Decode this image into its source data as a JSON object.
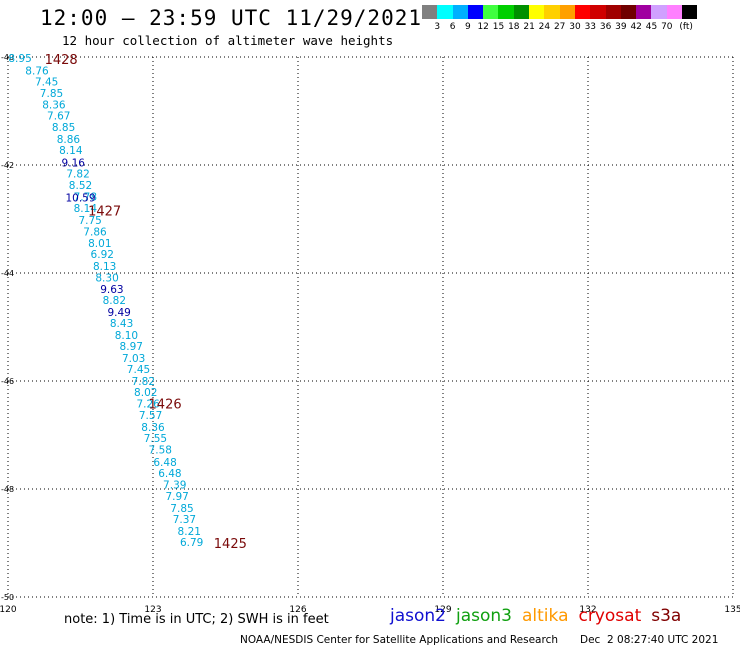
{
  "header": {
    "title": "12:00 — 23:59 UTC 11/29/2021",
    "subtitle": "12 hour collection of altimeter wave heights"
  },
  "legend": {
    "colors": [
      "#808080",
      "#00ffff",
      "#00b0ff",
      "#0000ff",
      "#40ff40",
      "#00d000",
      "#009000",
      "#ffff00",
      "#ffd000",
      "#ffa000",
      "#ff0000",
      "#d00000",
      "#a00000",
      "#700000",
      "#a000a0",
      "#d0a0ff",
      "#ff80ff",
      "#000000"
    ],
    "labels": [
      "3",
      "6",
      "9",
      "12",
      "15",
      "18",
      "21",
      "24",
      "27",
      "30",
      "33",
      "36",
      "39",
      "42",
      "45",
      "70",
      "(ft)"
    ]
  },
  "map": {
    "lat_labels": [
      "-40",
      "-42",
      "-44",
      "-46",
      "-48",
      "-50"
    ],
    "lon_labels": [
      "120",
      "123",
      "126",
      "129",
      "132",
      "135"
    ],
    "lat_values": [
      -40,
      -42,
      -44,
      -46,
      -48,
      -50
    ],
    "lon_values": [
      120,
      123,
      126,
      129,
      132,
      135
    ],
    "bounds": {
      "lon_min": 120,
      "lon_max": 135,
      "lat_max": -40,
      "lat_min": -50
    }
  },
  "colors": {
    "cyan": "#00a8d8",
    "blue": "#0000a0",
    "pass": "#7a0a0a"
  },
  "observations": [
    {
      "label": "8.95",
      "lon": 120.25,
      "lat": -40.02,
      "color": "cyan"
    },
    {
      "label": "8.76",
      "lon": 120.6,
      "lat": -40.25,
      "color": "cyan"
    },
    {
      "label": "7.45",
      "lon": 120.8,
      "lat": -40.45,
      "color": "cyan"
    },
    {
      "label": "7.85",
      "lon": 120.9,
      "lat": -40.67,
      "color": "cyan"
    },
    {
      "label": "8.36",
      "lon": 120.95,
      "lat": -40.88,
      "color": "cyan"
    },
    {
      "label": "7.67",
      "lon": 121.05,
      "lat": -41.08,
      "color": "cyan"
    },
    {
      "label": "8.85",
      "lon": 121.15,
      "lat": -41.3,
      "color": "cyan"
    },
    {
      "label": "8.86",
      "lon": 121.25,
      "lat": -41.52,
      "color": "cyan"
    },
    {
      "label": "8.14",
      "lon": 121.3,
      "lat": -41.72,
      "color": "cyan"
    },
    {
      "label": "9.16",
      "lon": 121.35,
      "lat": -41.95,
      "color": "blue"
    },
    {
      "label": "7.82",
      "lon": 121.45,
      "lat": -42.16,
      "color": "cyan"
    },
    {
      "label": "8.52",
      "lon": 121.5,
      "lat": -42.37,
      "color": "cyan"
    },
    {
      "label": "7.78",
      "lon": 121.6,
      "lat": -42.58,
      "color": "cyan"
    },
    {
      "label": "10.59",
      "lon": 121.5,
      "lat": -42.6,
      "color": "blue"
    },
    {
      "label": "8.14",
      "lon": 121.6,
      "lat": -42.8,
      "color": "cyan"
    },
    {
      "label": "7.75",
      "lon": 121.7,
      "lat": -43.02,
      "color": "cyan"
    },
    {
      "label": "7.86",
      "lon": 121.8,
      "lat": -43.23,
      "color": "cyan"
    },
    {
      "label": "8.01",
      "lon": 121.9,
      "lat": -43.44,
      "color": "cyan"
    },
    {
      "label": "6.92",
      "lon": 121.95,
      "lat": -43.65,
      "color": "cyan"
    },
    {
      "label": "8.13",
      "lon": 122.0,
      "lat": -43.87,
      "color": "cyan"
    },
    {
      "label": "8.30",
      "lon": 122.05,
      "lat": -44.08,
      "color": "cyan"
    },
    {
      "label": "9.63",
      "lon": 122.15,
      "lat": -44.3,
      "color": "blue"
    },
    {
      "label": "8.82",
      "lon": 122.2,
      "lat": -44.5,
      "color": "cyan"
    },
    {
      "label": "9.49",
      "lon": 122.3,
      "lat": -44.72,
      "color": "blue"
    },
    {
      "label": "8.43",
      "lon": 122.35,
      "lat": -44.93,
      "color": "cyan"
    },
    {
      "label": "8.10",
      "lon": 122.45,
      "lat": -45.15,
      "color": "cyan"
    },
    {
      "label": "8.97",
      "lon": 122.55,
      "lat": -45.35,
      "color": "cyan"
    },
    {
      "label": "7.03",
      "lon": 122.6,
      "lat": -45.57,
      "color": "cyan"
    },
    {
      "label": "7.45",
      "lon": 122.7,
      "lat": -45.78,
      "color": "cyan"
    },
    {
      "label": "7.82",
      "lon": 122.8,
      "lat": -46.0,
      "color": "cyan"
    },
    {
      "label": "8.02",
      "lon": 122.85,
      "lat": -46.2,
      "color": "cyan"
    },
    {
      "label": "7.26",
      "lon": 122.9,
      "lat": -46.42,
      "color": "cyan"
    },
    {
      "label": "7.57",
      "lon": 122.95,
      "lat": -46.63,
      "color": "cyan"
    },
    {
      "label": "8.36",
      "lon": 123.0,
      "lat": -46.85,
      "color": "cyan"
    },
    {
      "label": "7.55",
      "lon": 123.05,
      "lat": -47.06,
      "color": "cyan"
    },
    {
      "label": "7.58",
      "lon": 123.15,
      "lat": -47.27,
      "color": "cyan"
    },
    {
      "label": "6.48",
      "lon": 123.25,
      "lat": -47.5,
      "color": "cyan"
    },
    {
      "label": "6.48",
      "lon": 123.35,
      "lat": -47.7,
      "color": "cyan"
    },
    {
      "label": "7.39",
      "lon": 123.45,
      "lat": -47.92,
      "color": "cyan"
    },
    {
      "label": "7.97",
      "lon": 123.5,
      "lat": -48.13,
      "color": "cyan"
    },
    {
      "label": "7.85",
      "lon": 123.6,
      "lat": -48.35,
      "color": "cyan"
    },
    {
      "label": "7.37",
      "lon": 123.65,
      "lat": -48.56,
      "color": "cyan"
    },
    {
      "label": "8.21",
      "lon": 123.75,
      "lat": -48.78,
      "color": "cyan"
    },
    {
      "label": "6.79",
      "lon": 123.8,
      "lat": -48.98,
      "color": "cyan"
    }
  ],
  "passes": [
    {
      "label": "1428",
      "lon": 121.1,
      "lat": -40.04
    },
    {
      "label": "1427",
      "lon": 122.0,
      "lat": -42.84
    },
    {
      "label": "1426",
      "lon": 123.25,
      "lat": -46.42
    },
    {
      "label": "1425",
      "lon": 124.6,
      "lat": -49.0
    }
  ],
  "footer": {
    "note": "note: 1) Time is in UTC; 2) SWH is in feet",
    "missions": [
      {
        "label": "jason2",
        "color": "#1010d0"
      },
      {
        "label": "jason3",
        "color": "#10a010"
      },
      {
        "label": "altika",
        "color": "#ff9900"
      },
      {
        "label": "cryosat",
        "color": "#e00000"
      },
      {
        "label": "s3a",
        "color": "#800000"
      }
    ],
    "credit": "NOAA/NESDIS Center for Satellite Applications and Research",
    "timestamp": "Dec  2 08:27:40 UTC 2021"
  }
}
